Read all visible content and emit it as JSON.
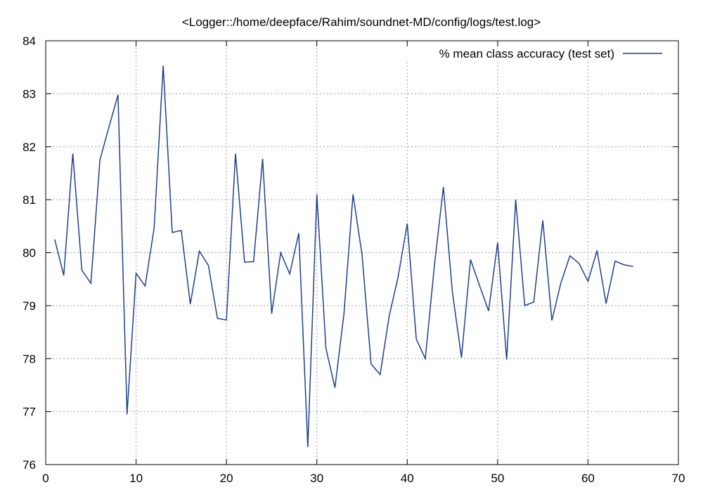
{
  "chart_data": {
    "type": "line",
    "title": "<Logger::/home/deepface/Rahim/soundnet-MD/config/logs/test.log>",
    "xlabel": "",
    "ylabel": "",
    "xlim": [
      0,
      70
    ],
    "ylim": [
      76,
      84
    ],
    "xticks": [
      0,
      10,
      20,
      30,
      40,
      50,
      60,
      70
    ],
    "yticks": [
      76,
      77,
      78,
      79,
      80,
      81,
      82,
      83,
      84
    ],
    "grid": true,
    "legend_position": "top-right",
    "series": [
      {
        "name": "% mean class accuracy (test set)",
        "color": "#1f3f8f",
        "x": [
          1,
          2,
          3,
          4,
          5,
          6,
          7,
          8,
          9,
          10,
          11,
          12,
          13,
          14,
          15,
          16,
          17,
          18,
          19,
          20,
          21,
          22,
          23,
          24,
          25,
          26,
          27,
          28,
          29,
          30,
          31,
          32,
          33,
          34,
          35,
          36,
          37,
          38,
          39,
          40,
          41,
          42,
          43,
          44,
          45,
          46,
          47,
          48,
          49,
          50,
          51,
          52,
          53,
          54,
          55,
          56,
          57,
          58,
          59,
          60,
          61,
          62,
          63,
          64,
          65
        ],
        "values": [
          80.25,
          79.57,
          81.87,
          79.67,
          79.42,
          81.75,
          82.37,
          82.98,
          76.95,
          79.61,
          79.37,
          80.47,
          83.53,
          80.38,
          80.42,
          79.03,
          80.03,
          79.76,
          78.76,
          78.73,
          81.87,
          79.82,
          79.83,
          81.77,
          78.85,
          80.0,
          79.6,
          80.37,
          76.33,
          81.1,
          78.2,
          77.45,
          78.85,
          81.1,
          79.96,
          77.9,
          77.7,
          78.8,
          79.55,
          80.55,
          78.37,
          78.0,
          79.75,
          81.24,
          79.25,
          78.02,
          79.87,
          79.38,
          78.9,
          80.19,
          77.98,
          81.0,
          79.0,
          79.07,
          80.61,
          78.72,
          79.43,
          79.94,
          79.8,
          79.46,
          80.04,
          79.04,
          79.84,
          79.77,
          79.74
        ]
      }
    ]
  }
}
